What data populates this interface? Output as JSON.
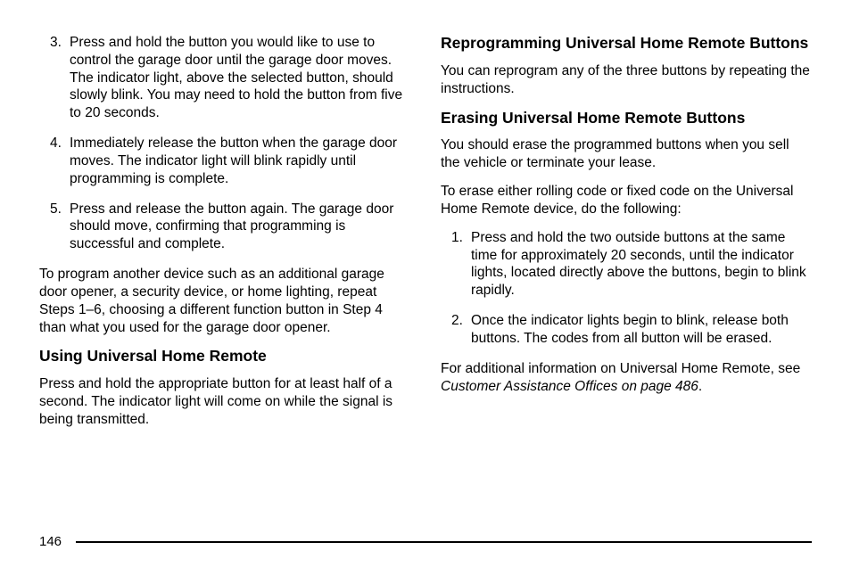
{
  "left": {
    "list": [
      {
        "n": "3.",
        "t": "Press and hold the button you would like to use to control the garage door until the garage door moves. The indicator light, above the selected button, should slowly blink. You may need to hold the button from five to 20 seconds."
      },
      {
        "n": "4.",
        "t": "Immediately release the button when the garage door moves. The indicator light will blink rapidly until programming is complete."
      },
      {
        "n": "5.",
        "t": "Press and release the button again. The garage door should move, confirming that programming is successful and complete."
      }
    ],
    "para": "To program another device such as an additional garage door opener, a security device, or home lighting, repeat Steps 1–6, choosing a different function button in Step 4 than what you used for the garage door opener.",
    "h_using": "Using Universal Home Remote",
    "para_using": "Press and hold the appropriate button for at least half of a second. The indicator light will come on while the signal is being transmitted."
  },
  "right": {
    "h_reprog": "Reprogramming Universal Home Remote Buttons",
    "para_reprog": "You can reprogram any of the three buttons by repeating the instructions.",
    "h_erase": "Erasing Universal Home Remote Buttons",
    "para_erase1": "You should erase the programmed buttons when you sell the vehicle or terminate your lease.",
    "para_erase2": "To erase either rolling code or fixed code on the Universal Home Remote device, do the following:",
    "list": [
      {
        "n": "1.",
        "t": "Press and hold the two outside buttons at the same time for approximately 20 seconds, until the indicator lights, located directly above the buttons, begin to blink rapidly."
      },
      {
        "n": "2.",
        "t": "Once the indicator lights begin to blink, release both buttons. The codes from all button will be erased."
      }
    ],
    "para_add_a": "For additional information on Universal Home Remote, see ",
    "para_add_i": "Customer Assistance Offices on page 486",
    "para_add_b": "."
  },
  "page": "146"
}
